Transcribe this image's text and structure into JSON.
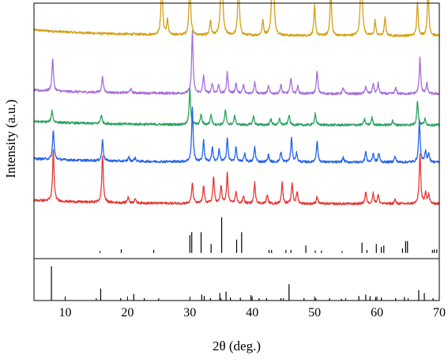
{
  "chart_data": {
    "type": "line",
    "title": "",
    "xlabel": "2θ (deg.)",
    "ylabel": "Intensity (a.u.)",
    "xlim": [
      5,
      70
    ],
    "x_ticks": [
      "10",
      "20",
      "30",
      "40",
      "50",
      "60",
      "70"
    ],
    "x_tick_values": [
      10,
      20,
      30,
      40,
      50,
      60,
      70
    ],
    "grid": false,
    "legend": "none",
    "series": [
      {
        "color": "#D4A017",
        "baseline": 0.89,
        "slope": 0.02,
        "noise": 0.004,
        "peaks": [
          [
            25.5,
            0.21
          ],
          [
            26.4,
            0.05
          ],
          [
            30.0,
            0.21
          ],
          [
            33.3,
            0.05
          ],
          [
            35.1,
            0.39
          ],
          [
            37.8,
            0.21
          ],
          [
            41.7,
            0.05
          ],
          [
            43.3,
            0.44
          ],
          [
            50.0,
            0.1
          ],
          [
            52.6,
            0.16
          ],
          [
            57.5,
            0.33
          ],
          [
            59.7,
            0.05
          ],
          [
            61.3,
            0.06
          ],
          [
            66.5,
            0.11
          ],
          [
            68.2,
            0.17
          ]
        ]
      },
      {
        "color": "#A86DDC",
        "baseline": 0.695,
        "slope": 0.012,
        "noise": 0.004,
        "peaks": [
          [
            8.0,
            0.11
          ],
          [
            16.0,
            0.055
          ],
          [
            20.5,
            0.015
          ],
          [
            30.4,
            0.21
          ],
          [
            32.2,
            0.06
          ],
          [
            33.6,
            0.035
          ],
          [
            34.6,
            0.03
          ],
          [
            36.0,
            0.07
          ],
          [
            37.4,
            0.035
          ],
          [
            38.6,
            0.03
          ],
          [
            40.4,
            0.04
          ],
          [
            42.6,
            0.025
          ],
          [
            44.6,
            0.03
          ],
          [
            46.2,
            0.055
          ],
          [
            47.3,
            0.025
          ],
          [
            50.4,
            0.075
          ],
          [
            54.6,
            0.02
          ],
          [
            58.2,
            0.025
          ],
          [
            59.4,
            0.035
          ],
          [
            60.2,
            0.035
          ],
          [
            63.0,
            0.02
          ],
          [
            66.9,
            0.12
          ],
          [
            68.0,
            0.035
          ]
        ]
      },
      {
        "color": "#2CA25F",
        "baseline": 0.59,
        "slope": 0.012,
        "noise": 0.004,
        "peaks": [
          [
            7.9,
            0.04
          ],
          [
            15.8,
            0.03
          ],
          [
            30.0,
            0.12
          ],
          [
            31.8,
            0.035
          ],
          [
            33.4,
            0.035
          ],
          [
            35.7,
            0.05
          ],
          [
            37.2,
            0.03
          ],
          [
            40.2,
            0.03
          ],
          [
            43.0,
            0.02
          ],
          [
            44.4,
            0.02
          ],
          [
            45.9,
            0.035
          ],
          [
            50.1,
            0.04
          ],
          [
            58.0,
            0.02
          ],
          [
            59.2,
            0.025
          ],
          [
            62.5,
            0.015
          ],
          [
            66.5,
            0.08
          ],
          [
            67.7,
            0.02
          ]
        ]
      },
      {
        "color": "#2563EB",
        "baseline": 0.465,
        "slope": 0.012,
        "noise": 0.004,
        "peaks": [
          [
            8.1,
            0.1
          ],
          [
            16.0,
            0.07
          ],
          [
            20.2,
            0.015
          ],
          [
            21.2,
            0.012
          ],
          [
            30.4,
            0.18
          ],
          [
            32.2,
            0.07
          ],
          [
            33.6,
            0.05
          ],
          [
            34.7,
            0.04
          ],
          [
            36.0,
            0.08
          ],
          [
            37.4,
            0.05
          ],
          [
            38.8,
            0.03
          ],
          [
            40.4,
            0.05
          ],
          [
            42.6,
            0.025
          ],
          [
            44.6,
            0.035
          ],
          [
            46.3,
            0.08
          ],
          [
            47.1,
            0.03
          ],
          [
            50.4,
            0.07
          ],
          [
            54.6,
            0.015
          ],
          [
            58.2,
            0.035
          ],
          [
            59.4,
            0.03
          ],
          [
            60.3,
            0.03
          ],
          [
            62.9,
            0.02
          ],
          [
            66.8,
            0.14
          ],
          [
            67.8,
            0.035
          ],
          [
            68.3,
            0.03
          ]
        ]
      },
      {
        "color": "#E53935",
        "baseline": 0.325,
        "slope": 0.012,
        "noise": 0.004,
        "peaks": [
          [
            8.1,
            0.17
          ],
          [
            16.0,
            0.16
          ],
          [
            20.1,
            0.02
          ],
          [
            21.2,
            0.015
          ],
          [
            30.4,
            0.07
          ],
          [
            32.2,
            0.06
          ],
          [
            33.8,
            0.09
          ],
          [
            35.0,
            0.06
          ],
          [
            36.0,
            0.1
          ],
          [
            37.4,
            0.04
          ],
          [
            38.6,
            0.025
          ],
          [
            40.4,
            0.07
          ],
          [
            42.4,
            0.03
          ],
          [
            44.8,
            0.07
          ],
          [
            46.4,
            0.07
          ],
          [
            47.2,
            0.04
          ],
          [
            50.4,
            0.025
          ],
          [
            58.2,
            0.04
          ],
          [
            59.4,
            0.035
          ],
          [
            60.2,
            0.03
          ],
          [
            62.9,
            0.015
          ],
          [
            66.9,
            0.17
          ],
          [
            67.8,
            0.04
          ],
          [
            68.3,
            0.03
          ]
        ]
      }
    ],
    "reference_patterns": [
      {
        "color": "#000000",
        "baseline": 0.16,
        "sticks": [
          [
            15.6,
            0.006
          ],
          [
            19.0,
            0.012
          ],
          [
            24.2,
            0.01
          ],
          [
            30.0,
            0.06
          ],
          [
            30.3,
            0.07
          ],
          [
            31.8,
            0.07
          ],
          [
            33.4,
            0.03
          ],
          [
            35.1,
            0.12
          ],
          [
            37.5,
            0.045
          ],
          [
            38.3,
            0.07
          ],
          [
            42.7,
            0.01
          ],
          [
            43.1,
            0.01
          ],
          [
            45.4,
            0.01
          ],
          [
            46.2,
            0.01
          ],
          [
            48.6,
            0.025
          ],
          [
            50.1,
            0.008
          ],
          [
            51.1,
            0.008
          ],
          [
            54.4,
            0.006
          ],
          [
            57.6,
            0.035
          ],
          [
            58.4,
            0.01
          ],
          [
            59.9,
            0.03
          ],
          [
            60.7,
            0.02
          ],
          [
            61.1,
            0.025
          ],
          [
            64.1,
            0.015
          ],
          [
            64.6,
            0.04
          ],
          [
            64.9,
            0.04
          ],
          [
            68.9,
            0.01
          ],
          [
            69.2,
            0.012
          ],
          [
            69.6,
            0.012
          ]
        ]
      },
      {
        "color": "#000000",
        "baseline": 0.0,
        "sticks": [
          [
            7.8,
            0.115
          ],
          [
            15.7,
            0.04
          ],
          [
            18.9,
            0.008
          ],
          [
            21.0,
            0.022
          ],
          [
            22.7,
            0.008
          ],
          [
            31.9,
            0.02
          ],
          [
            32.3,
            0.015
          ],
          [
            33.3,
            0.008
          ],
          [
            34.8,
            0.025
          ],
          [
            35.8,
            0.03
          ],
          [
            36.5,
            0.01
          ],
          [
            38.1,
            0.01
          ],
          [
            39.8,
            0.018
          ],
          [
            41.1,
            0.008
          ],
          [
            42.3,
            0.008
          ],
          [
            44.6,
            0.008
          ],
          [
            45.9,
            0.055
          ],
          [
            48.3,
            0.008
          ],
          [
            50.2,
            0.008
          ],
          [
            52.4,
            0.008
          ],
          [
            54.3,
            0.006
          ],
          [
            57.1,
            0.015
          ],
          [
            58.2,
            0.02
          ],
          [
            58.9,
            0.015
          ],
          [
            59.8,
            0.012
          ],
          [
            60.7,
            0.01
          ],
          [
            63.0,
            0.008
          ],
          [
            64.4,
            0.012
          ],
          [
            66.7,
            0.035
          ],
          [
            67.6,
            0.025
          ],
          [
            69.0,
            0.008
          ]
        ]
      }
    ]
  }
}
